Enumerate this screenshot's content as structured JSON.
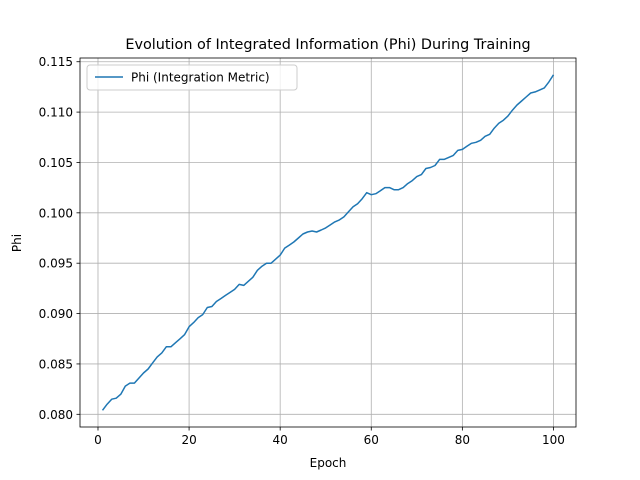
{
  "chart_data": {
    "type": "line",
    "title": "Evolution of Integrated Information (Phi) During Training",
    "xlabel": "Epoch",
    "ylabel": "Phi",
    "xlim": [
      -3.95,
      104.95
    ],
    "ylim": [
      0.07874,
      0.11537
    ],
    "grid": true,
    "legend_placement": "upper-left",
    "xticks": [
      0,
      20,
      40,
      60,
      80,
      100
    ],
    "xtick_labels": [
      "0",
      "20",
      "40",
      "60",
      "80",
      "100"
    ],
    "yticks": [
      0.08,
      0.085,
      0.09,
      0.095,
      0.1,
      0.105,
      0.11,
      0.115
    ],
    "ytick_labels": [
      "0.080",
      "0.085",
      "0.090",
      "0.095",
      "0.100",
      "0.105",
      "0.110",
      "0.115"
    ],
    "series": [
      {
        "name": "Phi (Integration Metric)",
        "color": "#1f77b4",
        "x": [
          1,
          2,
          3,
          4,
          5,
          6,
          7,
          8,
          9,
          10,
          11,
          12,
          13,
          14,
          15,
          16,
          17,
          18,
          19,
          20,
          21,
          22,
          23,
          24,
          25,
          26,
          27,
          28,
          29,
          30,
          31,
          32,
          33,
          34,
          35,
          36,
          37,
          38,
          39,
          40,
          41,
          42,
          43,
          44,
          45,
          46,
          47,
          48,
          49,
          50,
          51,
          52,
          53,
          54,
          55,
          56,
          57,
          58,
          59,
          60,
          61,
          62,
          63,
          64,
          65,
          66,
          67,
          68,
          69,
          70,
          71,
          72,
          73,
          74,
          75,
          76,
          77,
          78,
          79,
          80,
          81,
          82,
          83,
          84,
          85,
          86,
          87,
          88,
          89,
          90,
          91,
          92,
          93,
          94,
          95,
          96,
          97,
          98,
          99,
          100
        ],
        "values": [
          0.0804,
          0.081,
          0.0815,
          0.0816,
          0.082,
          0.0828,
          0.0831,
          0.0831,
          0.0836,
          0.0841,
          0.0845,
          0.0851,
          0.0857,
          0.0861,
          0.0867,
          0.0867,
          0.0871,
          0.0875,
          0.0879,
          0.0887,
          0.0891,
          0.0896,
          0.0899,
          0.0906,
          0.0907,
          0.0912,
          0.0915,
          0.0918,
          0.0921,
          0.0924,
          0.0929,
          0.0928,
          0.0932,
          0.0936,
          0.0943,
          0.0947,
          0.095,
          0.095,
          0.0954,
          0.0958,
          0.0965,
          0.0968,
          0.0971,
          0.0975,
          0.0979,
          0.0981,
          0.0982,
          0.0981,
          0.0983,
          0.0985,
          0.0988,
          0.0991,
          0.0993,
          0.0996,
          0.1001,
          0.1006,
          0.1009,
          0.1014,
          0.102,
          0.1018,
          0.1019,
          0.1022,
          0.1025,
          0.1025,
          0.1023,
          0.1023,
          0.1025,
          0.1029,
          0.1032,
          0.1036,
          0.1038,
          0.1044,
          0.1045,
          0.1047,
          0.1053,
          0.1053,
          0.1055,
          0.1057,
          0.1062,
          0.1063,
          0.1066,
          0.1069,
          0.107,
          0.1072,
          0.1076,
          0.1078,
          0.1084,
          0.1089,
          0.1092,
          0.1096,
          0.1102,
          0.1107,
          0.1111,
          0.1115,
          0.1119,
          0.112,
          0.1122,
          0.1124,
          0.113,
          0.1137
        ]
      }
    ]
  }
}
